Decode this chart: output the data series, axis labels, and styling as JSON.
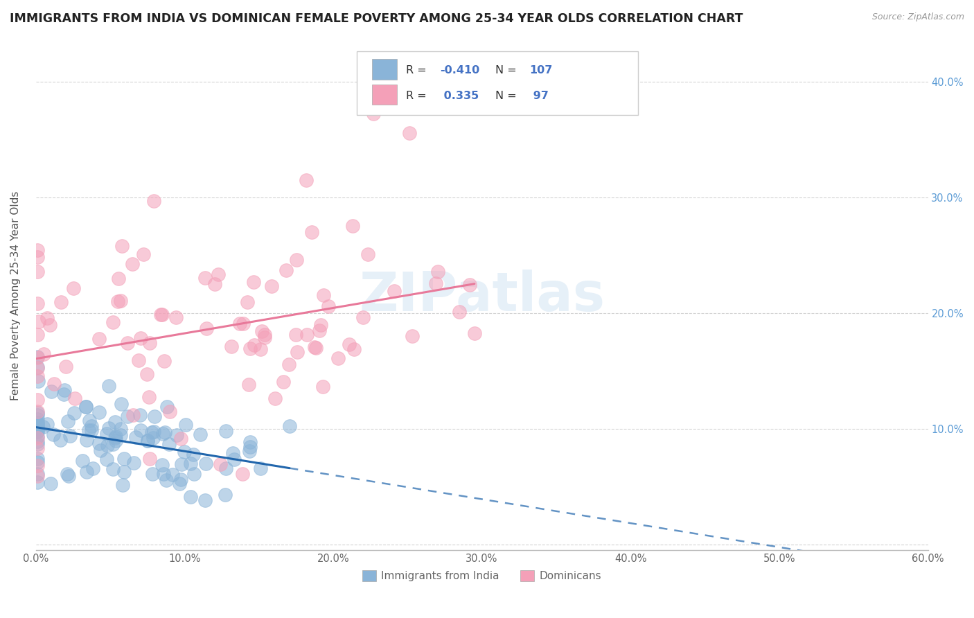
{
  "title": "IMMIGRANTS FROM INDIA VS DOMINICAN FEMALE POVERTY AMONG 25-34 YEAR OLDS CORRELATION CHART",
  "source": "Source: ZipAtlas.com",
  "ylabel": "Female Poverty Among 25-34 Year Olds",
  "xlim": [
    0.0,
    0.6
  ],
  "ylim": [
    -0.005,
    0.435
  ],
  "xticks": [
    0.0,
    0.1,
    0.2,
    0.3,
    0.4,
    0.5,
    0.6
  ],
  "xticklabels": [
    "0.0%",
    "10.0%",
    "20.0%",
    "30.0%",
    "40.0%",
    "50.0%",
    "60.0%"
  ],
  "yticks": [
    0.0,
    0.1,
    0.2,
    0.3,
    0.4
  ],
  "yticklabels": [
    "",
    "10.0%",
    "20.0%",
    "30.0%",
    "40.0%"
  ],
  "blue_R": -0.41,
  "blue_N": 107,
  "pink_R": 0.335,
  "pink_N": 97,
  "blue_color": "#8ab4d8",
  "pink_color": "#f4a0b8",
  "blue_line_color": "#2166ac",
  "pink_line_color": "#e8799a",
  "background_color": "#ffffff",
  "grid_color": "#d0d0d0",
  "title_fontsize": 12.5,
  "axis_fontsize": 11,
  "tick_fontsize": 10.5,
  "tick_color_right": "#5b9bd5",
  "tick_color_bottom": "#666666",
  "watermark_color": "#c8def0",
  "legend_text_color": "#333333",
  "legend_value_color": "#4472c4",
  "bottom_legend_text_color": "#666666"
}
